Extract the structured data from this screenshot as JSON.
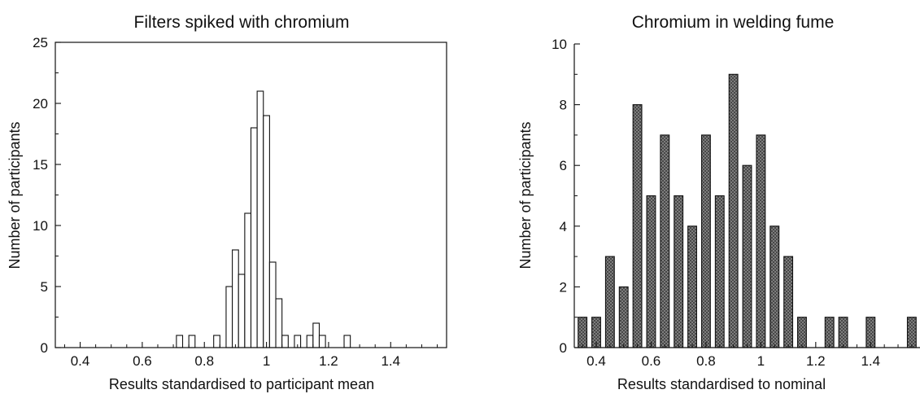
{
  "chart_data": [
    {
      "type": "bar",
      "title": "Filters spiked with chromium",
      "xlabel": "Results standardised to participant mean",
      "ylabel": "Number of participants",
      "xlim": [
        0.32,
        1.58
      ],
      "ylim": [
        0,
        25
      ],
      "xticks": [
        "0.4",
        "0.6",
        "0.8",
        "1",
        "1.2",
        "1.4"
      ],
      "yticks": [
        "0",
        "5",
        "10",
        "15",
        "20",
        "25"
      ],
      "bar_width": 0.02,
      "bar_fill": "#ffffff",
      "bar_stroke": "#111111",
      "x": [
        0.72,
        0.76,
        0.84,
        0.88,
        0.9,
        0.92,
        0.94,
        0.96,
        0.98,
        1.0,
        1.02,
        1.04,
        1.06,
        1.1,
        1.14,
        1.16,
        1.18,
        1.26
      ],
      "values": [
        1,
        1,
        1,
        5,
        8,
        6,
        11,
        18,
        21,
        19,
        7,
        4,
        1,
        1,
        1,
        2,
        1,
        1
      ]
    },
    {
      "type": "bar",
      "title": "Chromium in welding fume",
      "xlabel": "Results standardised to nominal",
      "ylabel": "Number of participants",
      "xlim": [
        0.32,
        1.58
      ],
      "ylim": [
        0,
        10
      ],
      "xticks": [
        "0.4",
        "0.6",
        "0.8",
        "1",
        "1.2",
        "1.4"
      ],
      "yticks": [
        "0",
        "2",
        "4",
        "6",
        "8",
        "10"
      ],
      "bar_width": 0.032,
      "bar_fill": "#8c8c8c",
      "bar_stroke": "#111111",
      "x": [
        0.35,
        0.4,
        0.45,
        0.5,
        0.55,
        0.6,
        0.65,
        0.7,
        0.75,
        0.8,
        0.85,
        0.9,
        0.95,
        1.0,
        1.05,
        1.1,
        1.15,
        1.25,
        1.3,
        1.4,
        1.55
      ],
      "values": [
        1,
        1,
        3,
        2,
        8,
        5,
        7,
        5,
        4,
        7,
        5,
        9,
        6,
        7,
        4,
        3,
        1,
        1,
        1,
        1,
        1
      ]
    }
  ]
}
